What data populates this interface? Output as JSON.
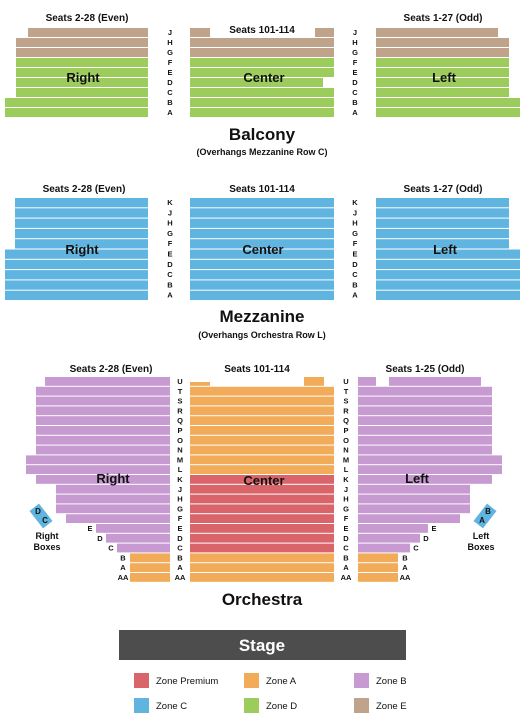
{
  "colors": {
    "zone_premium": "#d9646a",
    "zone_a": "#f2ab58",
    "zone_b": "#c79ad1",
    "zone_c": "#5fb4e0",
    "zone_d": "#9ccc5c",
    "zone_e": "#bfa38b",
    "stage": "#4d4d4d"
  },
  "balcony": {
    "title": "Balcony",
    "note": "(Overhangs Mezzanine Row C)",
    "rows": [
      "J",
      "H",
      "G",
      "F",
      "E",
      "D",
      "C",
      "B",
      "A"
    ],
    "right_heading": "Seats 2-28 (Even)",
    "center_heading": "Seats 101-114",
    "left_heading": "Seats 1-27 (Odd)",
    "right_label": "Right",
    "center_label": "Center",
    "left_label": "Left"
  },
  "mezzanine": {
    "title": "Mezzanine",
    "note": "(Overhangs Orchestra Row L)",
    "rows": [
      "K",
      "J",
      "H",
      "G",
      "F",
      "E",
      "D",
      "C",
      "B",
      "A"
    ],
    "right_heading": "Seats 2-28 (Even)",
    "center_heading": "Seats 101-114",
    "left_heading": "Seats 1-27 (Odd)",
    "right_label": "Right",
    "center_label": "Center",
    "left_label": "Left"
  },
  "orchestra": {
    "title": "Orchestra",
    "rows": [
      "U",
      "T",
      "S",
      "R",
      "Q",
      "P",
      "O",
      "N",
      "M",
      "L",
      "K",
      "J",
      "H",
      "G",
      "F",
      "E",
      "D",
      "C",
      "B",
      "A",
      "AA"
    ],
    "right_heading": "Seats 2-28 (Even)",
    "center_heading": "Seats 101-114",
    "left_heading": "Seats 1-25 (Odd)",
    "right_label": "Right",
    "center_label": "Center",
    "left_label": "Left",
    "right_boxes_label": [
      "Right",
      "Boxes"
    ],
    "left_boxes_label": [
      "Left",
      "Boxes"
    ],
    "right_box_letters": [
      "D",
      "C"
    ],
    "left_box_letters": [
      "B",
      "A"
    ]
  },
  "stage_label": "Stage",
  "legend": [
    {
      "label": "Zone Premium",
      "color": "#d9646a"
    },
    {
      "label": "Zone A",
      "color": "#f2ab58"
    },
    {
      "label": "Zone B",
      "color": "#c79ad1"
    },
    {
      "label": "Zone C",
      "color": "#5fb4e0"
    },
    {
      "label": "Zone D",
      "color": "#9ccc5c"
    },
    {
      "label": "Zone E",
      "color": "#bfa38b"
    }
  ]
}
